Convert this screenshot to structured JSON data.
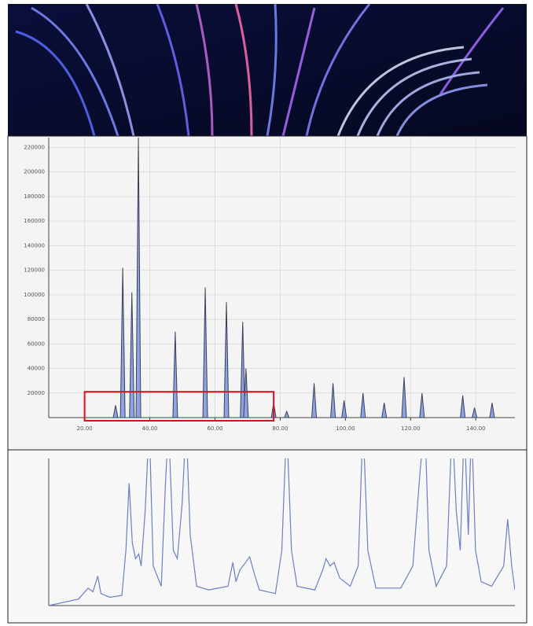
{
  "chart_data": [
    {
      "type": "peaks",
      "color": "#8ea3e0",
      "stroke": "#3a3f5c",
      "xlim": [
        9,
        152
      ],
      "ylim": [
        0,
        228000
      ],
      "grid": true,
      "xticks": [
        {
          "value": 20,
          "label": "20.00"
        },
        {
          "value": 40,
          "label": "40.00"
        },
        {
          "value": 60,
          "label": "60.00"
        },
        {
          "value": 80,
          "label": "80.00"
        },
        {
          "value": 100,
          "label": "100.00"
        },
        {
          "value": 120,
          "label": "120.00"
        },
        {
          "value": 140,
          "label": "140.00"
        }
      ],
      "yticks": [
        20000,
        40000,
        60000,
        80000,
        100000,
        120000,
        140000,
        160000,
        180000,
        200000,
        220000
      ],
      "x": [
        29.5,
        31.7,
        34.5,
        36.5,
        47.8,
        57,
        63.5,
        68.5,
        69.5,
        78,
        82,
        90.4,
        96.2,
        99.6,
        105.4,
        111.9,
        118,
        123.5,
        136,
        139.6,
        145
      ],
      "values": [
        10000,
        122000,
        102000,
        228000,
        70000,
        106000,
        94000,
        78000,
        40000,
        12000,
        5000,
        28000,
        28000,
        14000,
        20000,
        12000,
        33000,
        20000,
        18000,
        8000,
        12000
      ],
      "highlight": {
        "xlim": [
          20,
          78
        ],
        "ylim": [
          0,
          21000
        ],
        "color": "#d4141c"
      }
    },
    {
      "type": "line",
      "color": "#6a7fc4",
      "xlim": [
        20,
        78
      ],
      "ylim": [
        0,
        16000
      ],
      "grid": false,
      "x": [
        20,
        23.7,
        24.9,
        25.5,
        26.1,
        26.5,
        27.6,
        29.1,
        29.6,
        30,
        30.4,
        30.8,
        31.2,
        31.5,
        32,
        32.5,
        33,
        34,
        34.5,
        34.9,
        35.5,
        36,
        36.6,
        37.1,
        37.6,
        38.4,
        39.9,
        42.3,
        42.9,
        43.3,
        43.8,
        44.5,
        45,
        45.6,
        46.2,
        48.2,
        49,
        49.6,
        50.2,
        50.9,
        53.1,
        54.1,
        54.5,
        55,
        55.5,
        56.2,
        57.5,
        58.5,
        59.1,
        59.7,
        60.7,
        63.8,
        65.3,
        66.2,
        66.8,
        67.3,
        68.2,
        69.5,
        70.2,
        70.7,
        71.2,
        71.7,
        72.2,
        72.6,
        73.1,
        73.8,
        75.1,
        76.6,
        77.1,
        77.6,
        78
      ],
      "values": [
        0,
        700,
        1900,
        1500,
        3200,
        1300,
        900,
        1100,
        6000,
        13300,
        6800,
        5100,
        5600,
        4300,
        10300,
        20000,
        4300,
        2100,
        12800,
        20000,
        6000,
        5100,
        11100,
        20000,
        7700,
        2100,
        1700,
        2100,
        4700,
        2600,
        3900,
        4700,
        5300,
        3400,
        1700,
        1300,
        6000,
        20000,
        6000,
        2100,
        1700,
        3900,
        5100,
        4300,
        4700,
        3000,
        2100,
        4300,
        20000,
        6000,
        1900,
        1900,
        4300,
        14600,
        20000,
        6000,
        2100,
        4300,
        20000,
        10300,
        6000,
        20000,
        7700,
        20000,
        6000,
        2600,
        2100,
        4300,
        9400,
        4300,
        1700
      ]
    }
  ]
}
